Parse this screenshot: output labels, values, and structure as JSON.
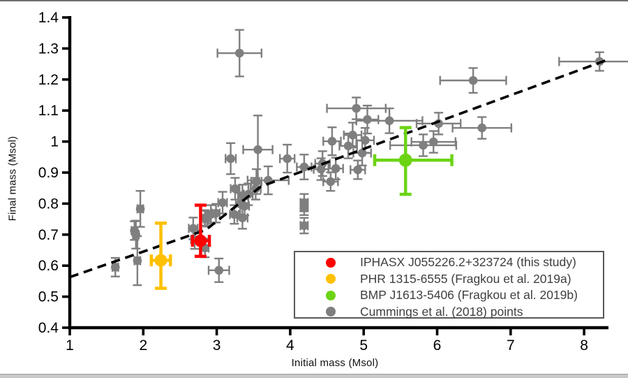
{
  "chart_data": {
    "type": "scatter",
    "title": "",
    "xlabel": "Initial mass (Msol)",
    "ylabel": "Final mass (Msol)",
    "xlim": [
      1,
      8.4
    ],
    "ylim": [
      0.4,
      1.4
    ],
    "grid": false,
    "x_ticks": [
      {
        "value": 1,
        "label": "1"
      },
      {
        "value": 2,
        "label": "2"
      },
      {
        "value": 3,
        "label": "3"
      },
      {
        "value": 4,
        "label": "4"
      },
      {
        "value": 5,
        "label": "5"
      },
      {
        "value": 6,
        "label": "6"
      },
      {
        "value": 7,
        "label": "7"
      },
      {
        "value": 8,
        "label": "8"
      }
    ],
    "y_ticks": [
      {
        "value": 0.4,
        "label": "0.4"
      },
      {
        "value": 0.5,
        "label": "0.5"
      },
      {
        "value": 0.6,
        "label": "0.6"
      },
      {
        "value": 0.7,
        "label": "0.7"
      },
      {
        "value": 0.8,
        "label": "0.8"
      },
      {
        "value": 0.9,
        "label": "0.9"
      },
      {
        "value": 1.0,
        "label": "1"
      },
      {
        "value": 1.1,
        "label": "1.1"
      },
      {
        "value": 1.2,
        "label": "1.2"
      },
      {
        "value": 1.3,
        "label": "1.3"
      },
      {
        "value": 1.4,
        "label": "1.4"
      }
    ],
    "fit_line": {
      "style": "dashed",
      "color": "#000000",
      "points": [
        [
          1.0,
          0.563
        ],
        [
          2.85,
          0.715
        ],
        [
          3.6,
          0.855
        ],
        [
          8.3,
          1.262
        ]
      ]
    },
    "series": [
      {
        "name": "IPHASX J055226.2+323724 (this study)",
        "color": "#fe0000",
        "marker_radius": 9,
        "points": [
          {
            "x": 2.78,
            "y": 0.68,
            "xerr_minus": 0.11,
            "xerr_plus": 0.12,
            "yerr_minus": 0.05,
            "yerr_plus": 0.115
          }
        ]
      },
      {
        "name": "PHR 1315-6555 (Fragkou et al. 2019a)",
        "color": "#ffc000",
        "marker_radius": 9,
        "points": [
          {
            "x": 2.24,
            "y": 0.617,
            "xerr_minus": 0.13,
            "xerr_plus": 0.13,
            "yerr_minus": 0.09,
            "yerr_plus": 0.12
          }
        ]
      },
      {
        "name": "BMP J1613-5406 (Fragkou et al. 2019b)",
        "color": "#6cd415",
        "marker_radius": 9.5,
        "points": [
          {
            "x": 5.57,
            "y": 0.94,
            "xerr_minus": 0.42,
            "xerr_plus": 0.63,
            "yerr_minus": 0.11,
            "yerr_plus": 0.105
          }
        ]
      },
      {
        "name": "Cummings et al. (2018) points",
        "color": "#7f7f7f",
        "marker_radius": 6.3,
        "points_xyee": [
          [
            1.62,
            0.595,
            0.04,
            0.03
          ],
          [
            1.88,
            0.713,
            0.04,
            0.03
          ],
          [
            1.9,
            0.7,
            0.04,
            0.045
          ],
          [
            1.96,
            0.783,
            0.04,
            0.058
          ],
          [
            1.92,
            0.616,
            0.04,
            0.079
          ],
          [
            2.68,
            0.72,
            0.06,
            0.035
          ],
          [
            2.7,
            0.684,
            0.05,
            0.03
          ],
          [
            2.84,
            0.754,
            0.05,
            0.025
          ],
          [
            2.87,
            0.751,
            0.05,
            0.025
          ],
          [
            2.92,
            0.765,
            0.06,
            0.03
          ],
          [
            2.99,
            0.769,
            0.05,
            0.03
          ],
          [
            2.84,
            0.657,
            0.05,
            0.03
          ],
          [
            3.03,
            0.585,
            0.14,
            0.038
          ],
          [
            3.08,
            0.803,
            0.06,
            0.035
          ],
          [
            3.19,
            0.945,
            0.07,
            0.05
          ],
          [
            3.24,
            0.765,
            0.06,
            0.03
          ],
          [
            3.25,
            0.848,
            0.06,
            0.035
          ],
          [
            3.31,
            1.285,
            0.3,
            0.075
          ],
          [
            3.32,
            0.799,
            0.06,
            0.035
          ],
          [
            3.35,
            0.826,
            0.06,
            0.035
          ],
          [
            3.35,
            0.754,
            0.07,
            0.035
          ],
          [
            3.38,
            0.792,
            0.06,
            0.03
          ],
          [
            3.43,
            0.83,
            0.06,
            0.035
          ],
          [
            3.53,
            0.848,
            0.07,
            0.035
          ],
          [
            3.54,
            0.871,
            0.07,
            0.04
          ],
          [
            3.56,
            0.974,
            0.2,
            0.11
          ],
          [
            3.7,
            0.875,
            0.28,
            0.045
          ],
          [
            3.96,
            0.945,
            0.1,
            0.045
          ],
          [
            4.19,
            0.918,
            0.1,
            0.04
          ],
          [
            4.19,
            0.803,
            0.05,
            0.028
          ],
          [
            4.19,
            0.788,
            0.05,
            0.025
          ],
          [
            4.19,
            0.729,
            0.05,
            0.025
          ],
          [
            4.42,
            0.911,
            0.1,
            0.035
          ],
          [
            4.44,
            0.929,
            0.1,
            0.04
          ],
          [
            4.55,
            0.871,
            0.1,
            0.03
          ],
          [
            4.57,
            1.001,
            0.12,
            0.045
          ],
          [
            4.62,
            0.913,
            0.1,
            0.035
          ],
          [
            4.79,
            0.986,
            0.12,
            0.04
          ],
          [
            4.85,
            1.021,
            0.12,
            0.04
          ],
          [
            4.9,
            1.107,
            0.4,
            0.035
          ],
          [
            4.92,
            0.909,
            0.1,
            0.03
          ],
          [
            4.98,
            0.963,
            0.12,
            0.04
          ],
          [
            5.02,
            1.004,
            0.12,
            0.04
          ],
          [
            5.05,
            1.071,
            0.15,
            0.045
          ],
          [
            5.35,
            1.067,
            0.45,
            0.04
          ],
          [
            5.81,
            0.988,
            0.45,
            0.035
          ],
          [
            5.95,
            0.999,
            0.3,
            0.035
          ],
          [
            6.02,
            1.058,
            0.3,
            0.035
          ],
          [
            6.49,
            1.197,
            0.45,
            0.04
          ],
          [
            6.61,
            1.044,
            0.4,
            0.035
          ],
          [
            8.21,
            1.258,
            0.55,
            0.03
          ]
        ]
      }
    ],
    "legend": {
      "position": "lower-right",
      "entries": [
        {
          "label": "IPHASX J055226.2+323724 (this study)",
          "color": "#fe0000"
        },
        {
          "label": "PHR 1315-6555 (Fragkou et al. 2019a)",
          "color": "#ffc000"
        },
        {
          "label": "BMP J1613-5406 (Fragkou et al. 2019b)",
          "color": "#6cd415"
        },
        {
          "label": "Cummings et al. (2018) points",
          "color": "#7f7f7f"
        }
      ]
    }
  }
}
